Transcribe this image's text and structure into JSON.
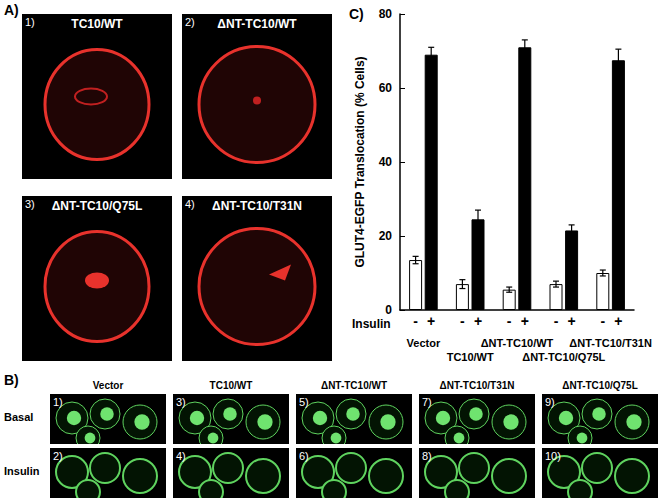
{
  "panel_a": {
    "label": "A)",
    "images": [
      {
        "number": "1)",
        "title": "TC10/WT"
      },
      {
        "number": "2)",
        "title": "ΔNT-TC10/WT"
      },
      {
        "number": "3)",
        "title": "ΔNT-TC10/Q75L"
      },
      {
        "number": "4)",
        "title": "ΔNT-TC10/T31N"
      }
    ]
  },
  "panel_b": {
    "label": "B)",
    "rows": [
      "Basal",
      "Insulin"
    ],
    "columns": [
      {
        "title": "Vector",
        "numbers": [
          "1)",
          "2)"
        ]
      },
      {
        "title": "TC10/WT",
        "numbers": [
          "3)",
          "4)"
        ]
      },
      {
        "title": "ΔNT-TC10/WT",
        "numbers": [
          "5)",
          "6)"
        ]
      },
      {
        "title": "ΔNT-TC10/T31N",
        "numbers": [
          "7)",
          "8)"
        ]
      },
      {
        "title": "ΔNT-TC10/Q75L",
        "numbers": [
          "9)",
          "10)"
        ]
      }
    ]
  },
  "chart_data": {
    "panel_label": "C)",
    "type": "bar",
    "y_label": "GLUT4-EGFP Translocation (% Cells)",
    "row_label": "Insulin",
    "categories": [
      "Vector",
      "TC10/WT",
      "ΔNT-TC10/WT",
      "ΔNT-TC10/Q75L",
      "ΔNT-TC10/T31N"
    ],
    "series": [
      {
        "name": "-",
        "color": "#ffffff",
        "values": [
          13.5,
          7,
          5.5,
          7,
          10
        ],
        "errors": [
          1,
          1.2,
          0.7,
          0.8,
          0.8
        ]
      },
      {
        "name": "+",
        "color": "#000000",
        "values": [
          69,
          24.5,
          71,
          21.5,
          67.5
        ],
        "errors": [
          2,
          2.5,
          2,
          1.5,
          3
        ]
      }
    ],
    "ylim": [
      0,
      80
    ],
    "yticks": [
      0,
      20,
      40,
      60,
      80
    ],
    "grid": false
  }
}
